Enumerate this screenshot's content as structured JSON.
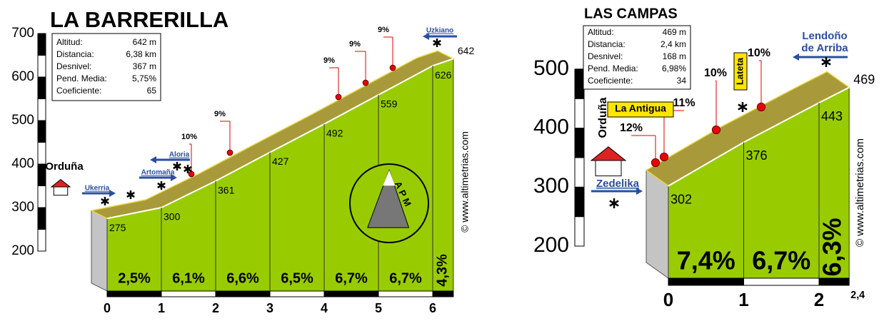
{
  "chart_data": [
    {
      "type": "profile",
      "title": "LA BARRERILLA",
      "x": [
        0,
        1,
        2,
        3,
        4,
        5,
        6,
        6.38
      ],
      "values": [
        275,
        300,
        361,
        427,
        492,
        559,
        626,
        642
      ],
      "grades": [
        "2,5%",
        "6,1%",
        "6,6%",
        "6,5%",
        "6,7%",
        "6,7%",
        "4,3%"
      ],
      "xlim": [
        0,
        6.38
      ],
      "ylim": [
        200,
        700
      ],
      "yticks": [
        200,
        300,
        400,
        500,
        600,
        700
      ],
      "xticks": [
        0,
        1,
        2,
        3,
        4,
        5,
        6
      ],
      "color": "#99cc00",
      "info": [
        [
          "Altitud:",
          "642 m"
        ],
        [
          "Distancia:",
          "6,38 km"
        ],
        [
          "Desnivel:",
          "367 m"
        ],
        [
          "Pend. Media:",
          "5,75%"
        ],
        [
          "Coeficiente:",
          "65"
        ]
      ],
      "places": [
        "Orduña",
        "Ukerria",
        "Artomaña",
        "Aloria",
        "Uzkiano"
      ],
      "max_grades": [
        "10%",
        "9%",
        "9%",
        "9%",
        "9%"
      ],
      "logo": "APM",
      "credit": "© www.altimetrias.com"
    },
    {
      "type": "profile",
      "title": "LAS CAMPAS",
      "x": [
        0,
        1,
        2,
        2.4
      ],
      "values": [
        302,
        376,
        443,
        469
      ],
      "grades": [
        "7,4%",
        "6,7%",
        "6,3%"
      ],
      "xlim": [
        0,
        2.4
      ],
      "ylim": [
        200,
        500
      ],
      "yticks": [
        200,
        300,
        400,
        500
      ],
      "xticks": [
        0,
        1,
        2,
        {
          "value": 2.4,
          "label": "2,4"
        }
      ],
      "color": "#99cc00",
      "info": [
        [
          "Altitud:",
          "469 m"
        ],
        [
          "Distancia:",
          "2,4 km"
        ],
        [
          "Desnivel:",
          "168 m"
        ],
        [
          "Pend. Media:",
          "6,98%"
        ],
        [
          "Coeficiente:",
          "34"
        ]
      ],
      "places": [
        "Orduña",
        "Zedelika",
        "La Antigua",
        "Lateta",
        [
          "Lendoño",
          "de Arriba"
        ]
      ],
      "max_grades": [
        "12%",
        "11%",
        "10%",
        "10%"
      ],
      "credit": "© www.altimetrias.com"
    }
  ]
}
